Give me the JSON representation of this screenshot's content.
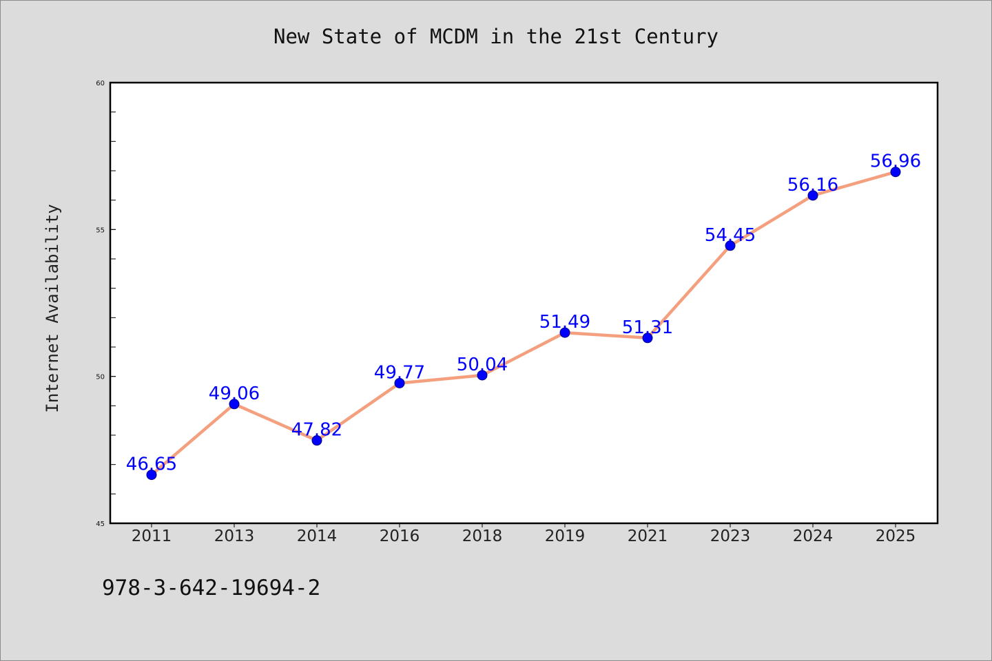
{
  "chart_data": {
    "type": "line",
    "title": "New State of MCDM in the 21st Century",
    "xlabel": "",
    "ylabel": "Internet Availability",
    "categories": [
      "2011",
      "2013",
      "2014",
      "2016",
      "2018",
      "2019",
      "2021",
      "2023",
      "2024",
      "2025"
    ],
    "series": [
      {
        "values": [
          46.65,
          49.06,
          47.82,
          49.77,
          50.04,
          51.49,
          51.31,
          54.45,
          56.16,
          56.96
        ]
      }
    ],
    "data_labels": [
      "46.65",
      "49.06",
      "47.82",
      "49.77",
      "50.04",
      "51.49",
      "51.31",
      "54.45",
      "56.16",
      "56.96"
    ],
    "ylim": [
      45,
      60
    ],
    "yticks": [
      "45",
      "50",
      "55",
      "60"
    ],
    "grid": false,
    "legend": "none",
    "line_color": "#f4a07e",
    "marker_color": "#0000ff",
    "label_color": "#0000ff",
    "plot_background": "#ffffff",
    "figure_background": "#dcdcdc"
  },
  "footer": {
    "isbn": "978-3-642-19694-2"
  }
}
